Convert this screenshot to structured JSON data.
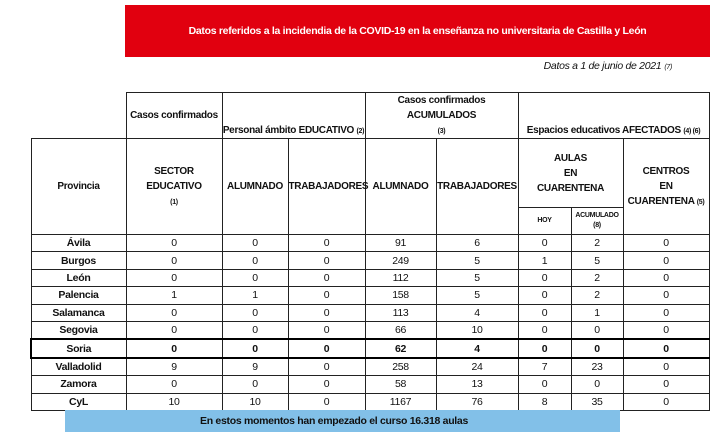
{
  "header": {
    "title": "Datos referidos a la incidendia de la COVID-19 en la enseñanza no universitaria de Castilla y León",
    "date": "Datos a 1 de junio de 2021",
    "date_note": "(7)",
    "brand_color": "#e1000f"
  },
  "table": {
    "group_headers": {
      "casos": "Casos confirmados",
      "personal": "Personal ámbito EDUCATIVO",
      "personal_note": "(2)",
      "acumulados": "Casos confirmados ACUMULADOS",
      "acumulados_note": "(3)",
      "espacios": "Espacios educativos AFECTADOS",
      "espacios_note": "(4) (6)"
    },
    "columns": {
      "provincia": "Provincia",
      "sector": "SECTOR EDUCATIVO",
      "sector_note": "(1)",
      "alumnado": "ALUMNADO",
      "trabajadores": "TRABAJADORES",
      "alumnado_acum": "ALUMNADO",
      "trabajadores_acum": "TRABAJADORES",
      "aulas": [
        "AULAS",
        "EN",
        "CUARENTENA"
      ],
      "hoy": "HOY",
      "acumulado": "ACUMULADO",
      "acumulado_note": "(8)",
      "centros": [
        "CENTROS",
        "EN",
        "CUARENTENA"
      ],
      "centros_note": "(5)"
    },
    "rows": [
      {
        "provincia": "Ávila",
        "values": [
          "0",
          "0",
          "0",
          "91",
          "6",
          "0",
          "2",
          "0"
        ]
      },
      {
        "provincia": "Burgos",
        "values": [
          "0",
          "0",
          "0",
          "249",
          "5",
          "1",
          "5",
          "0"
        ]
      },
      {
        "provincia": "León",
        "values": [
          "0",
          "0",
          "0",
          "112",
          "5",
          "0",
          "2",
          "0"
        ]
      },
      {
        "provincia": "Palencia",
        "values": [
          "1",
          "1",
          "0",
          "158",
          "5",
          "0",
          "2",
          "0"
        ]
      },
      {
        "provincia": "Salamanca",
        "values": [
          "0",
          "0",
          "0",
          "113",
          "4",
          "0",
          "1",
          "0"
        ]
      },
      {
        "provincia": "Segovia",
        "values": [
          "0",
          "0",
          "0",
          "66",
          "10",
          "0",
          "0",
          "0"
        ]
      },
      {
        "provincia": "Soria",
        "values": [
          "0",
          "0",
          "0",
          "62",
          "4",
          "0",
          "0",
          "0"
        ],
        "highlight": true
      },
      {
        "provincia": "Valladolid",
        "values": [
          "9",
          "9",
          "0",
          "258",
          "24",
          "7",
          "23",
          "0"
        ]
      },
      {
        "provincia": "Zamora",
        "values": [
          "0",
          "0",
          "0",
          "58",
          "13",
          "0",
          "0",
          "0"
        ]
      },
      {
        "provincia": "CyL",
        "values": [
          "10",
          "10",
          "0",
          "1167",
          "76",
          "8",
          "35",
          "0"
        ]
      }
    ]
  },
  "footer": {
    "note": "En estos momentos han empezado el curso 16.318 aulas",
    "bar_color": "#82c0e8"
  }
}
